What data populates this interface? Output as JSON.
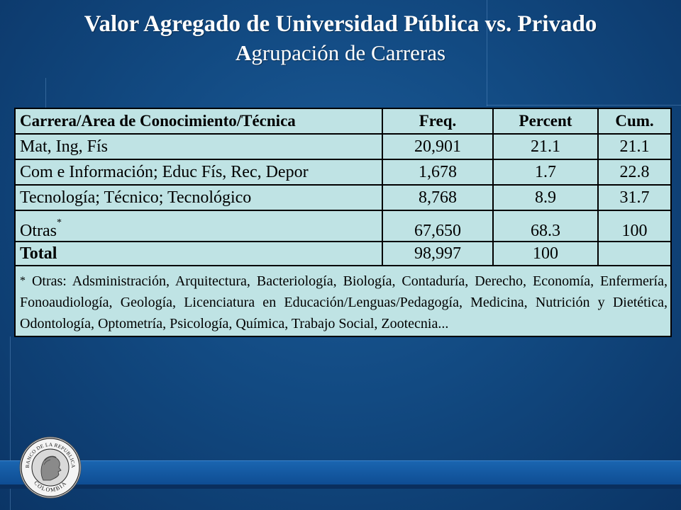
{
  "title": {
    "main": "Valor Agregado de Universidad Pública vs. Privado",
    "sub_initial": "A",
    "sub_rest": "grupación de Carreras"
  },
  "table": {
    "headers": [
      "Carrera/Area de Conocimiento/Técnica",
      "Freq.",
      "Percent",
      "Cum."
    ],
    "rows": [
      {
        "label": "Mat, Ing, Fís",
        "freq": "20,901",
        "percent": "21.1",
        "cum": "21.1"
      },
      {
        "label": "Com e Información; Educ Fís, Rec, Depor",
        "freq": "1,678",
        "percent": "1.7",
        "cum": "22.8"
      },
      {
        "label": "Tecnología; Técnico; Tecnológico",
        "freq": "8,768",
        "percent": "8.9",
        "cum": "31.7"
      },
      {
        "label": "Otras",
        "marker": "*",
        "freq": "67,650",
        "percent": "68.3",
        "cum": "100"
      }
    ],
    "total": {
      "label": "Total",
      "freq": "98,997",
      "percent": "100",
      "cum": ""
    },
    "note_marker": "*",
    "note": "Otras: Adsministración, Arquitectura, Bacteriología, Biología, Contaduría, Derecho, Economía, Enfermería, Fonoaudiología, Geología, Licenciatura en Educación/Lenguas/Pedagogía, Medicina, Nutrición y Dietética, Odontología, Optometría, Psicología, Química, Trabajo Social, Zootecnia..."
  },
  "logo": {
    "top_text": "BANCO DE LA REPUBLICA",
    "bottom_text": "COLOMBIA"
  },
  "colors": {
    "background": "#124a82",
    "table_fill": "#bfe3e4",
    "bar": "#1a65b0"
  }
}
